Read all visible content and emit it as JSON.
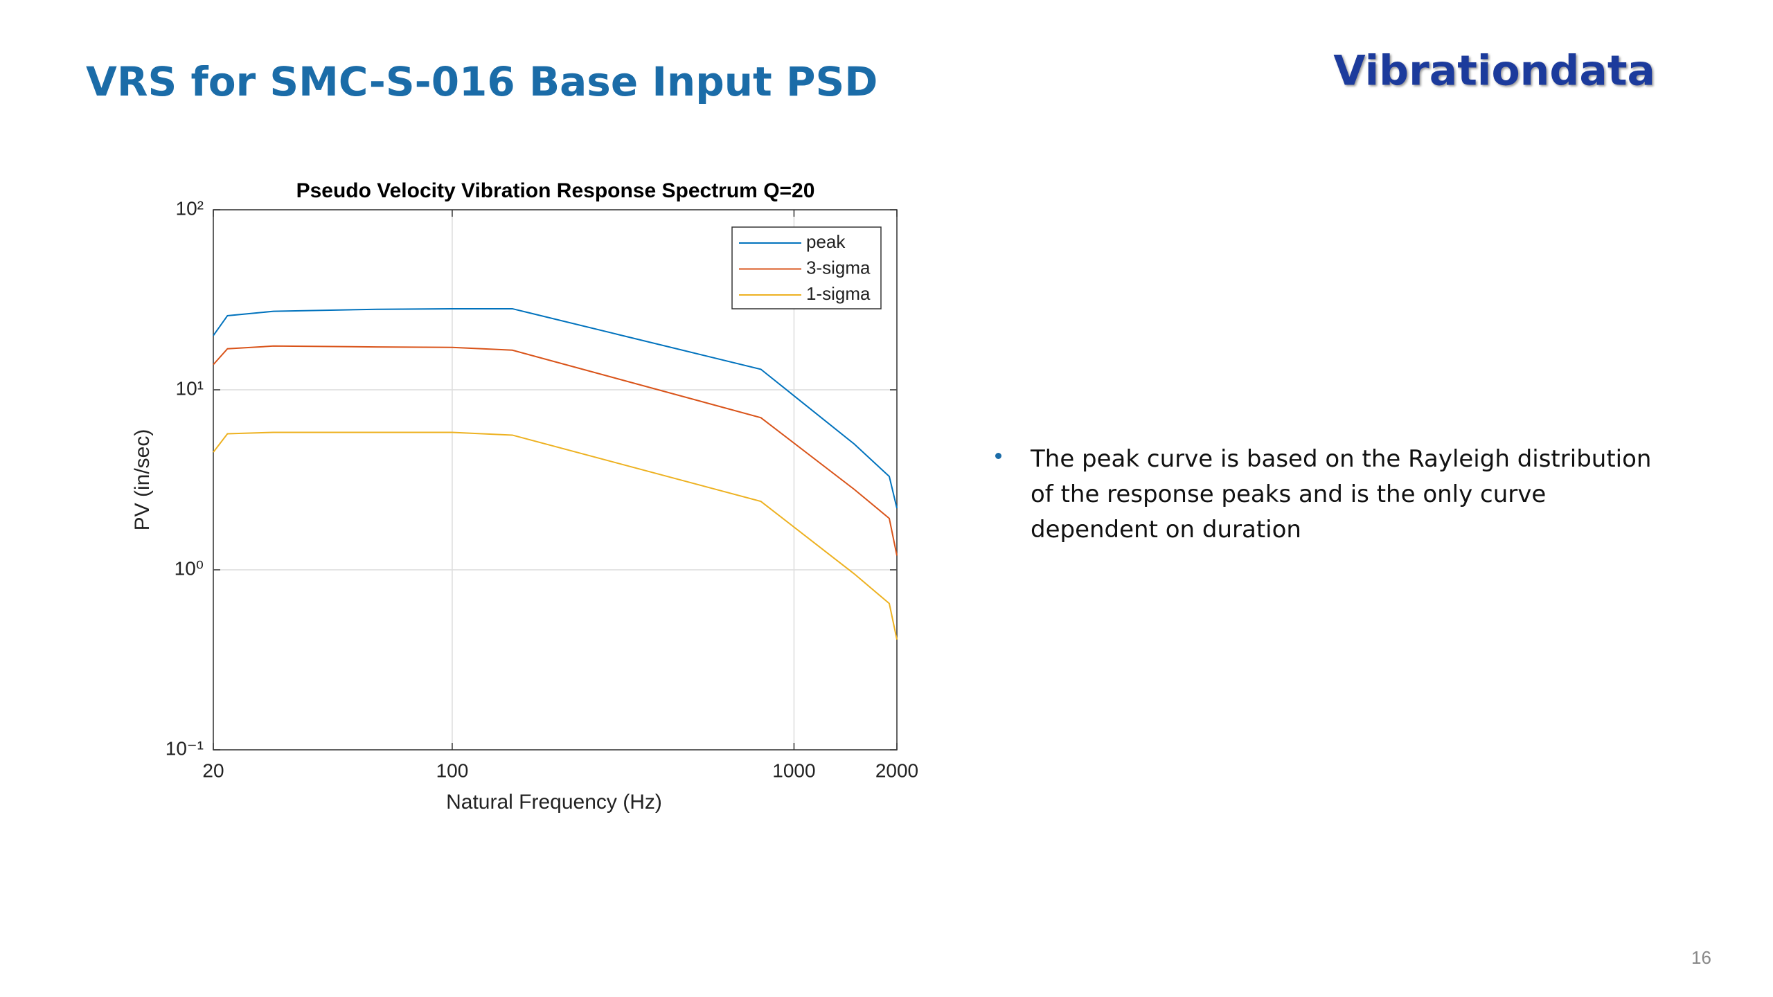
{
  "header": {
    "title": "VRS for SMC-S-016 Base Input PSD",
    "brand": "Vibrationdata"
  },
  "bullets": [
    "The peak curve is based on the Rayleigh distribution of the response peaks and is the only curve dependent on duration"
  ],
  "page_number": "16",
  "chart_data": {
    "type": "line",
    "title": "Pseudo Velocity Vibration Response Spectrum Q=20",
    "xlabel": "Natural Frequency (Hz)",
    "ylabel": "PV (in/sec)",
    "x": [
      20,
      22,
      30,
      60,
      100,
      150,
      800,
      1500,
      1900,
      2000
    ],
    "series": [
      {
        "name": "peak",
        "color": "#0072bd",
        "values": [
          20,
          25.8,
          27.3,
          28,
          28.2,
          28.2,
          13,
          5,
          3.3,
          2.2
        ]
      },
      {
        "name": "3-sigma",
        "color": "#d95319",
        "values": [
          13.8,
          16.9,
          17.5,
          17.3,
          17.2,
          16.6,
          7.0,
          2.8,
          1.93,
          1.2
        ]
      },
      {
        "name": "1-sigma",
        "color": "#edb120",
        "values": [
          4.5,
          5.7,
          5.8,
          5.8,
          5.8,
          5.6,
          2.4,
          0.95,
          0.65,
          0.41
        ]
      }
    ],
    "xscale": "log",
    "yscale": "log",
    "xlim": [
      20,
      2000
    ],
    "xticks": [
      20,
      100,
      1000,
      2000
    ],
    "ylim": [
      0.1,
      100
    ],
    "yticks": [
      {
        "value": 0.1,
        "label": "10⁻¹"
      },
      {
        "value": 1,
        "label": "10⁰"
      },
      {
        "value": 10,
        "label": "10¹"
      },
      {
        "value": 100,
        "label": "10²"
      }
    ],
    "grid": true,
    "legend": "upper right"
  }
}
